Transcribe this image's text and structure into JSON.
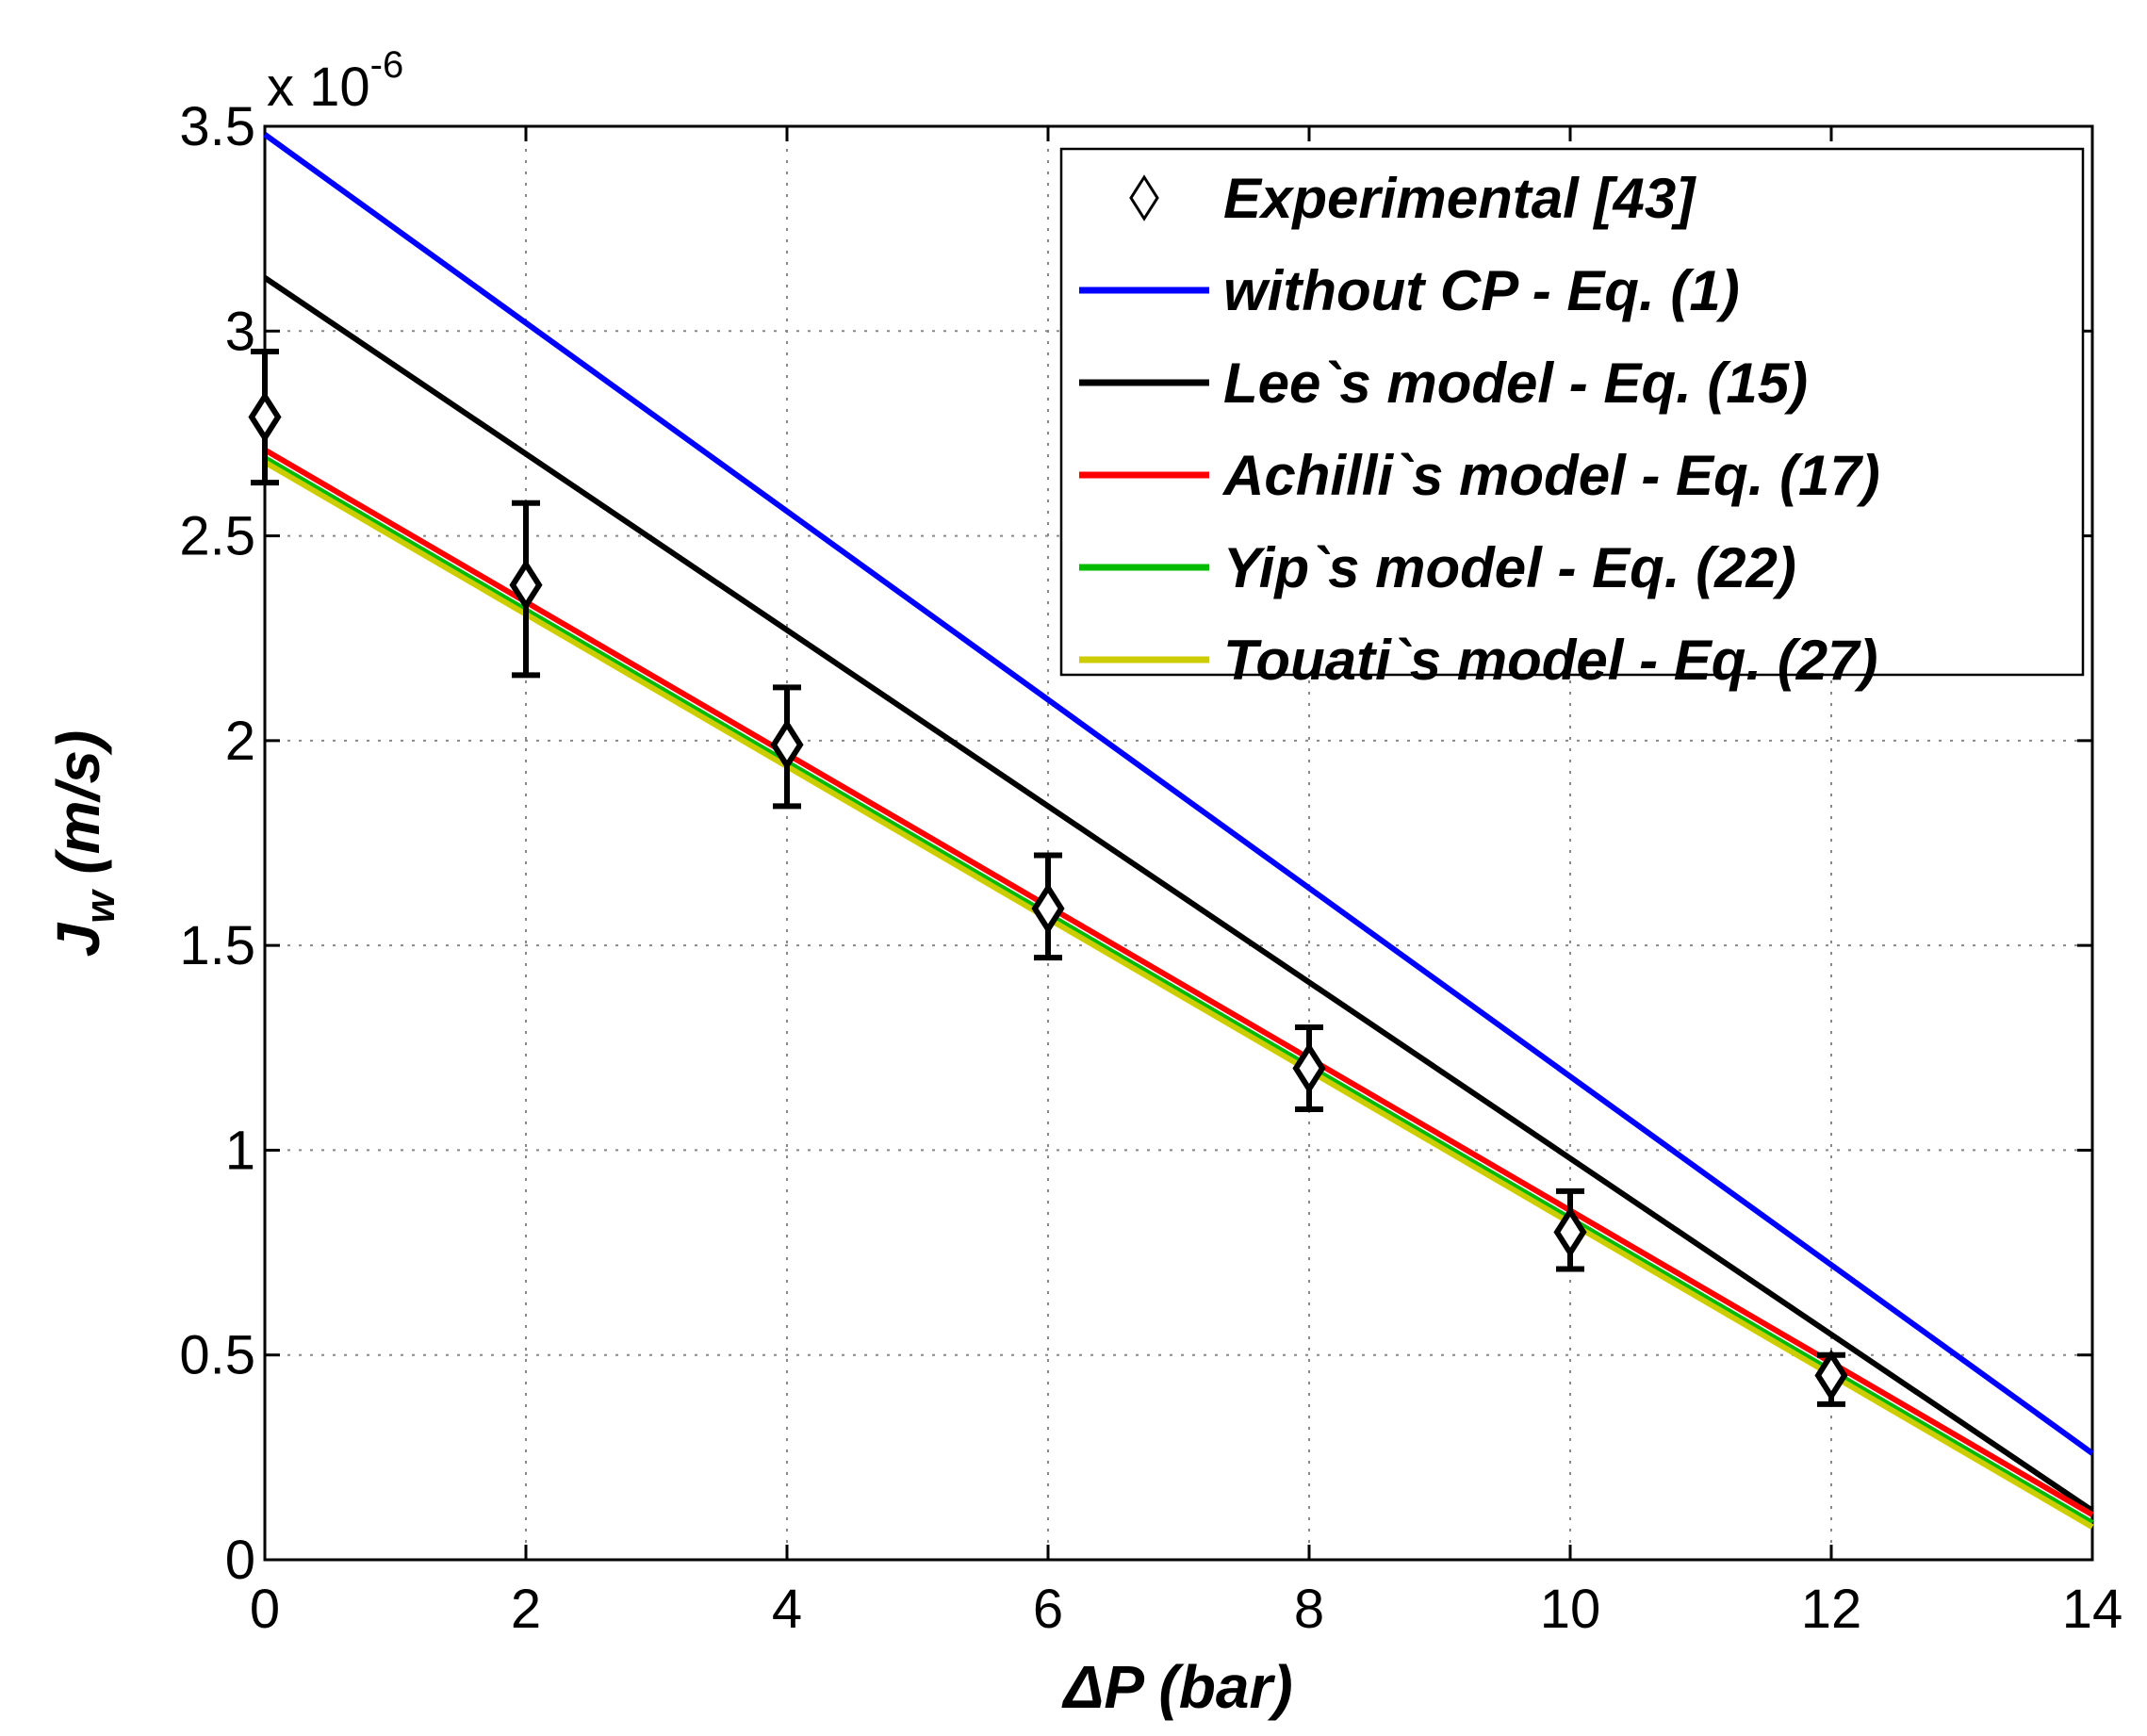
{
  "chart_data": {
    "type": "line",
    "xlabel_symbol": "ΔP",
    "xlabel_unit": " (bar)",
    "ylabel_main": "J",
    "ylabel_sub": "w",
    "ylabel_unit": " (m/s)",
    "y_multiplier_base": "x 10",
    "y_multiplier_exp": "-6",
    "xlim": [
      0,
      14
    ],
    "ylim": [
      0,
      3.5
    ],
    "grid": true,
    "legend_position": "top-right",
    "x_ticks": [
      {
        "value": 0,
        "label": "0"
      },
      {
        "value": 2,
        "label": "2"
      },
      {
        "value": 4,
        "label": "4"
      },
      {
        "value": 6,
        "label": "6"
      },
      {
        "value": 8,
        "label": "8"
      },
      {
        "value": 10,
        "label": "10"
      },
      {
        "value": 12,
        "label": "12"
      },
      {
        "value": 14,
        "label": "14"
      }
    ],
    "y_ticks": [
      {
        "value": 0,
        "label": "0"
      },
      {
        "value": 0.5,
        "label": "0.5"
      },
      {
        "value": 1,
        "label": "1"
      },
      {
        "value": 1.5,
        "label": "1.5"
      },
      {
        "value": 2,
        "label": "2"
      },
      {
        "value": 2.5,
        "label": "2.5"
      },
      {
        "value": 3,
        "label": "3"
      },
      {
        "value": 3.5,
        "label": "3.5"
      }
    ],
    "experimental": {
      "name": "Experimental [43]",
      "marker": "diamond",
      "color": "#000000",
      "points": [
        {
          "x": 0,
          "y": 2.79,
          "err_low": 2.63,
          "err_high": 2.95
        },
        {
          "x": 2,
          "y": 2.38,
          "err_low": 2.16,
          "err_high": 2.58
        },
        {
          "x": 4,
          "y": 1.99,
          "err_low": 1.84,
          "err_high": 2.13
        },
        {
          "x": 6,
          "y": 1.59,
          "err_low": 1.47,
          "err_high": 1.72
        },
        {
          "x": 8,
          "y": 1.2,
          "err_low": 1.1,
          "err_high": 1.3
        },
        {
          "x": 10,
          "y": 0.8,
          "err_low": 0.71,
          "err_high": 0.9
        },
        {
          "x": 12,
          "y": 0.45,
          "err_low": 0.38,
          "err_high": 0.5
        }
      ]
    },
    "series": [
      {
        "name": "without CP - Eq. (1)",
        "color": "#0000ff",
        "x": [
          0,
          14
        ],
        "y": [
          3.48,
          0.26
        ]
      },
      {
        "name": "Lee`s model - Eq. (15)",
        "color": "#000000",
        "x": [
          0,
          14
        ],
        "y": [
          3.13,
          0.12
        ]
      },
      {
        "name": "Achilli`s model  - Eq. (17)",
        "color": "#ff0000",
        "x": [
          0,
          14
        ],
        "y": [
          2.71,
          0.11
        ]
      },
      {
        "name": "Yip`s model - Eq. (22)",
        "color": "#00bb00",
        "x": [
          0,
          14
        ],
        "y": [
          2.69,
          0.09
        ]
      },
      {
        "name": "Touati`s model - Eq. (27)",
        "color": "#cccc00",
        "x": [
          0,
          14
        ],
        "y": [
          2.68,
          0.08
        ]
      }
    ]
  }
}
